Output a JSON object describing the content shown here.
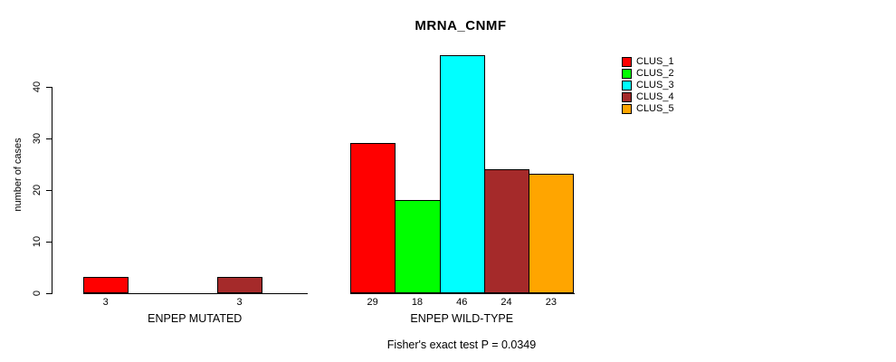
{
  "chart_data": {
    "type": "bar",
    "title": "MRNA_CNMF",
    "ylabel": "number of cases",
    "xlabel": "",
    "yticks": [
      0,
      10,
      20,
      30,
      40
    ],
    "ylim": [
      0,
      46
    ],
    "grid": false,
    "legend_position": "right",
    "series_names": [
      "CLUS_1",
      "CLUS_2",
      "CLUS_3",
      "CLUS_4",
      "CLUS_5"
    ],
    "series_colors": [
      "#ff0000",
      "#00ff00",
      "#00ffff",
      "#a52a2a",
      "#ffa500"
    ],
    "groups": [
      {
        "label": "ENPEP MUTATED",
        "values": [
          3,
          0,
          0,
          3,
          0
        ],
        "bar_labels": [
          "3",
          "",
          "",
          "3",
          ""
        ]
      },
      {
        "label": "ENPEP WILD-TYPE",
        "values": [
          29,
          18,
          46,
          24,
          23
        ],
        "bar_labels": [
          "29",
          "18",
          "46",
          "24",
          "23"
        ]
      }
    ],
    "annotation": "Fisher's exact test P = 0.0349"
  }
}
